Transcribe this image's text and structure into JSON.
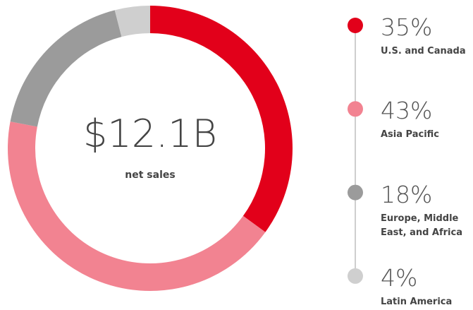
{
  "chart_data": {
    "type": "pie",
    "donut": true,
    "center_value": "$12.1B",
    "center_label": "net sales",
    "categories": [
      "U.S. and Canada",
      "Asia Pacific",
      "Europe, Middle East, and Africa",
      "Latin America"
    ],
    "values": [
      35,
      43,
      18,
      4
    ],
    "value_labels": [
      "35%",
      "43%",
      "18%",
      "4%"
    ],
    "colors": [
      "#e2001a",
      "#f28391",
      "#9b9b9b",
      "#cfcfcf"
    ]
  }
}
